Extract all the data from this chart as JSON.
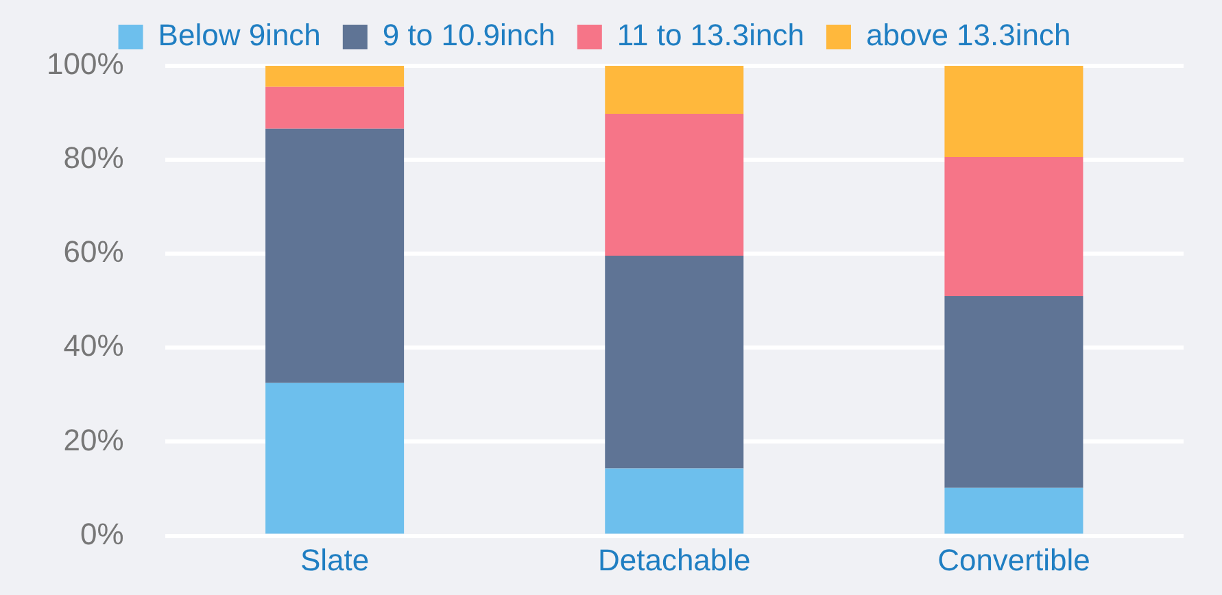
{
  "chart_data": {
    "type": "bar",
    "stacked": true,
    "categories": [
      "Slate",
      "Detachable",
      "Convertible"
    ],
    "series": [
      {
        "name": "Below 9inch",
        "color": "#6dbfed",
        "values": [
          32.5,
          14.3,
          10.2
        ]
      },
      {
        "name": "9 to 10.9inch",
        "color": "#5f7495",
        "values": [
          54.1,
          45.3,
          40.8
        ]
      },
      {
        "name": "11 to 13.3inch",
        "color": "#f67588",
        "values": [
          8.9,
          30.2,
          29.6
        ]
      },
      {
        "name": "above 13.3inch",
        "color": "#ffb83c",
        "values": [
          4.5,
          10.2,
          19.4
        ]
      }
    ],
    "ylim": [
      0,
      100
    ],
    "yticks": [
      {
        "value": 0,
        "label": "0%"
      },
      {
        "value": 20,
        "label": "20%"
      },
      {
        "value": 40,
        "label": "40%"
      },
      {
        "value": 60,
        "label": "60%"
      },
      {
        "value": 80,
        "label": "80%"
      },
      {
        "value": 100,
        "label": "100%"
      }
    ],
    "grid": "y",
    "legend": "top"
  }
}
